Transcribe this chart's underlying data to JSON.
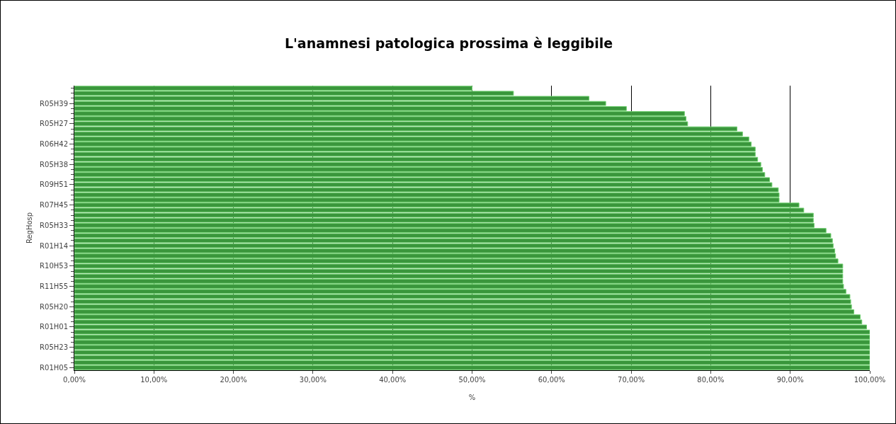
{
  "chart_data": {
    "type": "bar",
    "orientation": "horizontal",
    "title": "L'anamnesi patologica prossima è leggibile",
    "xlabel": "%",
    "ylabel": "RegHosp",
    "categories": [
      null,
      null,
      null,
      "R05H39",
      null,
      null,
      null,
      "R05H27",
      null,
      null,
      null,
      "R06H42",
      null,
      null,
      null,
      "R05H38",
      null,
      null,
      null,
      "R09H51",
      null,
      null,
      null,
      "R07H45",
      null,
      null,
      null,
      "R05H33",
      null,
      null,
      null,
      "R01H14",
      null,
      null,
      null,
      "R10H53",
      null,
      null,
      null,
      "R11H55",
      null,
      null,
      null,
      "R05H20",
      null,
      null,
      null,
      "R01H01",
      null,
      null,
      null,
      "R05H23",
      null,
      null,
      null,
      "R01H05"
    ],
    "values": [
      50.0,
      55.2,
      64.7,
      66.8,
      69.4,
      76.7,
      76.9,
      77.1,
      83.3,
      84.0,
      84.8,
      85.1,
      85.6,
      85.6,
      85.9,
      86.3,
      86.5,
      86.8,
      87.4,
      87.7,
      88.5,
      88.6,
      88.6,
      91.1,
      91.7,
      92.9,
      92.9,
      93.0,
      94.5,
      95.1,
      95.3,
      95.4,
      95.6,
      95.7,
      96.0,
      96.6,
      96.6,
      96.6,
      96.6,
      96.7,
      97.0,
      97.5,
      97.6,
      97.7,
      98.0,
      98.8,
      99.0,
      99.6,
      100,
      100,
      100,
      100,
      100,
      100,
      100,
      100
    ],
    "color": "#3a963c",
    "xlim": [
      0,
      100
    ],
    "xticks": [
      {
        "value": 0,
        "label": "0,00%"
      },
      {
        "value": 10,
        "label": "10,00%"
      },
      {
        "value": 20,
        "label": "20,00%"
      },
      {
        "value": 30,
        "label": "30,00%"
      },
      {
        "value": 40,
        "label": "40,00%"
      },
      {
        "value": 50,
        "label": "50,00%"
      },
      {
        "value": 60,
        "label": "60,00%"
      },
      {
        "value": 70,
        "label": "70,00%"
      },
      {
        "value": 80,
        "label": "80,00%"
      },
      {
        "value": 90,
        "label": "90,00%"
      },
      {
        "value": 100,
        "label": "100,00%"
      }
    ],
    "grid": "x"
  }
}
